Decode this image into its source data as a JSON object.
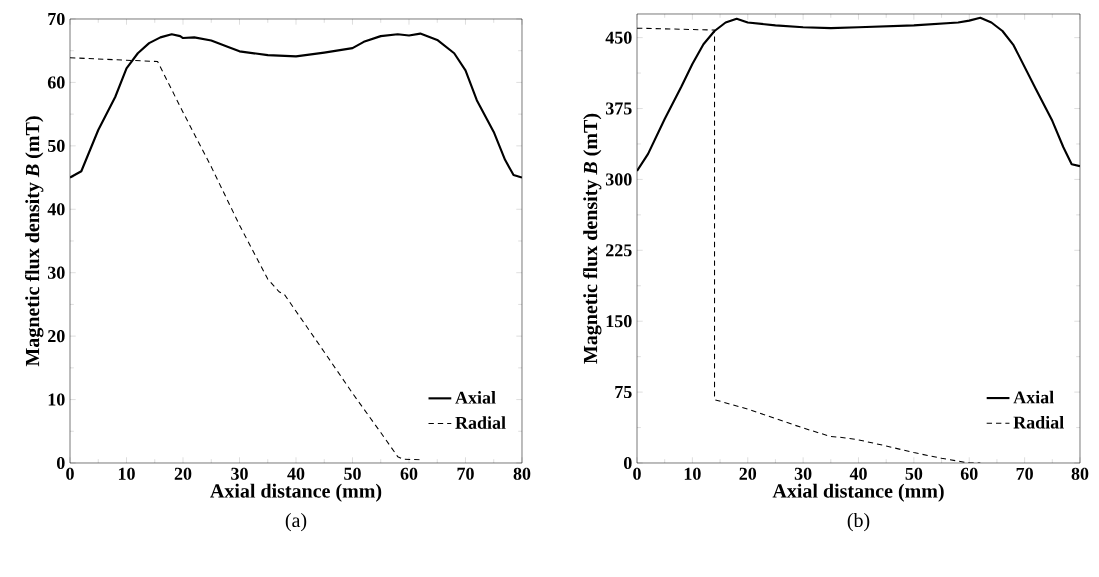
{
  "chart_data": [
    {
      "type": "line",
      "title": "(a)",
      "xlabel": "Axial distance (mm)",
      "ylabel": "Magnetic flux density *B* (mT)",
      "xlim": [
        0,
        80
      ],
      "ylim": [
        0,
        70
      ],
      "xticks": [
        0,
        10,
        20,
        30,
        40,
        50,
        60,
        70,
        80
      ],
      "yticks": [
        0,
        10,
        20,
        30,
        40,
        50,
        60,
        70
      ],
      "legend": "bottom right",
      "series": [
        {
          "name": "Axial",
          "color": "#000000",
          "line_style": "solid",
          "x": [
            0,
            2,
            5,
            8,
            10,
            12,
            14,
            16,
            18,
            19.5,
            20,
            22,
            25,
            28,
            30,
            35,
            40,
            45,
            50,
            52,
            55,
            58,
            60,
            62,
            65,
            68,
            70,
            72,
            75,
            77,
            78.5,
            80
          ],
          "values": [
            45,
            46,
            52.5,
            57.7,
            62.2,
            64.6,
            66.2,
            67.1,
            67.6,
            67.3,
            67,
            67.1,
            66.6,
            65.6,
            64.9,
            64.3,
            64.1,
            64.7,
            65.4,
            66.4,
            67.3,
            67.6,
            67.4,
            67.7,
            66.7,
            64.6,
            61.9,
            57.2,
            52.2,
            47.8,
            45.4,
            45
          ]
        },
        {
          "name": "Radial",
          "color": "#000000",
          "line_style": "dashed",
          "x": [
            0,
            10,
            15.5,
            20,
            25,
            30,
            35,
            37,
            38,
            45,
            50,
            55,
            58,
            59,
            62
          ],
          "values": [
            63.9,
            63.5,
            63.3,
            55.3,
            46.7,
            37.5,
            29,
            27,
            26.5,
            17.5,
            11,
            4.8,
            1,
            0.6,
            0.5
          ]
        }
      ]
    },
    {
      "type": "line",
      "title": "(b)",
      "xlabel": "Axial distance (mm)",
      "ylabel": "Magnetic flux density *B* (mT)",
      "xlim": [
        0,
        80
      ],
      "ylim": [
        0,
        475
      ],
      "xticks": [
        0,
        10,
        20,
        30,
        40,
        50,
        60,
        70,
        80
      ],
      "yticks": [
        0,
        75,
        150,
        225,
        300,
        375,
        450
      ],
      "legend": "bottom right",
      "series": [
        {
          "name": "Axial",
          "color": "#000000",
          "line_style": "solid",
          "x": [
            0,
            2,
            5,
            8,
            10,
            12,
            14,
            16,
            18,
            20,
            25,
            30,
            35,
            40,
            50,
            58,
            60,
            62,
            64,
            66,
            68,
            70,
            72,
            75,
            77,
            78.5,
            80
          ],
          "values": [
            309,
            327,
            364,
            398,
            422,
            443,
            457,
            466,
            470,
            466,
            463,
            461,
            460,
            461,
            463,
            466,
            468,
            471,
            466,
            457,
            442,
            419,
            396,
            362,
            334,
            316,
            314
          ]
        },
        {
          "name": "Radial",
          "color": "#000000",
          "line_style": "dashed",
          "x": [
            0,
            14,
            14,
            20,
            25,
            30,
            35,
            37,
            40,
            45,
            50,
            55,
            60,
            62
          ],
          "values": [
            460,
            458,
            67,
            57,
            47,
            37,
            28,
            27,
            24.5,
            18,
            11,
            5,
            0,
            0
          ]
        }
      ]
    }
  ]
}
